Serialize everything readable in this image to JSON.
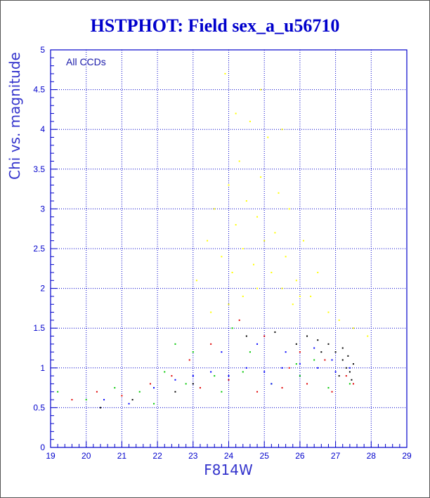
{
  "chart_data": {
    "type": "scatter",
    "title": "HSTPHOT: Field sex_a_u56710",
    "xlabel": "F814W",
    "ylabel": "Chi vs. magnitude",
    "annotation": "All CCDs",
    "xlim": [
      19,
      29
    ],
    "ylim": [
      0,
      5
    ],
    "x_ticks": [
      "19",
      "20",
      "21",
      "22",
      "23",
      "24",
      "25",
      "26",
      "27",
      "28",
      "29"
    ],
    "y_ticks": [
      "0",
      "0.5",
      "1",
      "1.5",
      "2",
      "2.5",
      "3",
      "3.5",
      "4",
      "4.5",
      "5"
    ],
    "grid": true,
    "colors": {
      "axes": "#0000cc",
      "grid": "#0000cc",
      "series_yellow": "#ffff00",
      "series_blue": "#0000ff",
      "series_green": "#00c800",
      "series_red": "#e00000",
      "series_black": "#000000"
    },
    "series": [
      {
        "color": "#ffff00",
        "values": [
          [
            23.1,
            2.1
          ],
          [
            23.4,
            2.6
          ],
          [
            23.6,
            3.0
          ],
          [
            23.8,
            2.4
          ],
          [
            24.0,
            3.3
          ],
          [
            24.1,
            2.2
          ],
          [
            24.2,
            2.8
          ],
          [
            24.3,
            3.6
          ],
          [
            24.4,
            2.5
          ],
          [
            24.5,
            3.1
          ],
          [
            24.6,
            4.1
          ],
          [
            24.7,
            2.3
          ],
          [
            24.8,
            2.9
          ],
          [
            24.9,
            3.4
          ],
          [
            25.0,
            2.6
          ],
          [
            25.1,
            3.9
          ],
          [
            25.2,
            2.2
          ],
          [
            25.3,
            2.7
          ],
          [
            25.4,
            3.2
          ],
          [
            25.5,
            2.0
          ],
          [
            25.6,
            2.4
          ],
          [
            25.7,
            3.0
          ],
          [
            25.9,
            2.1
          ],
          [
            26.1,
            2.6
          ],
          [
            26.3,
            1.9
          ],
          [
            26.5,
            2.2
          ],
          [
            26.8,
            1.7
          ],
          [
            27.1,
            1.6
          ],
          [
            27.5,
            1.5
          ],
          [
            27.9,
            1.4
          ],
          [
            24.2,
            4.2
          ],
          [
            24.9,
            4.5
          ],
          [
            23.9,
            4.7
          ],
          [
            25.5,
            4.0
          ],
          [
            24.4,
            1.9
          ],
          [
            25.8,
            1.8
          ],
          [
            23.5,
            1.7
          ],
          [
            24.8,
            2.0
          ],
          [
            26.0,
            1.9
          ],
          [
            24.0,
            1.8
          ]
        ]
      },
      {
        "color": "#000000",
        "values": [
          [
            26.8,
            1.3
          ],
          [
            27.0,
            1.2
          ],
          [
            27.2,
            1.1
          ],
          [
            27.3,
            1.0
          ],
          [
            27.4,
            0.95
          ],
          [
            27.5,
            1.05
          ],
          [
            26.5,
            1.35
          ],
          [
            26.2,
            1.4
          ],
          [
            27.1,
            0.9
          ],
          [
            27.35,
            1.15
          ],
          [
            21.3,
            0.6
          ],
          [
            20.4,
            0.5
          ],
          [
            22.5,
            0.7
          ],
          [
            23.0,
            0.8
          ],
          [
            25.9,
            1.3
          ],
          [
            26.6,
            1.2
          ],
          [
            27.45,
            0.85
          ],
          [
            24.5,
            1.4
          ],
          [
            25.3,
            1.45
          ],
          [
            27.2,
            1.25
          ]
        ]
      },
      {
        "color": "#e00000",
        "values": [
          [
            19.6,
            0.6
          ],
          [
            20.3,
            0.7
          ],
          [
            21.0,
            0.65
          ],
          [
            21.8,
            0.8
          ],
          [
            22.4,
            0.9
          ],
          [
            23.2,
            0.75
          ],
          [
            24.0,
            0.85
          ],
          [
            24.8,
            0.7
          ],
          [
            25.5,
            0.75
          ],
          [
            26.2,
            0.8
          ],
          [
            26.9,
            0.7
          ],
          [
            27.5,
            0.8
          ],
          [
            23.5,
            1.3
          ],
          [
            25.0,
            1.4
          ],
          [
            26.0,
            1.2
          ],
          [
            24.3,
            1.6
          ],
          [
            22.9,
            1.1
          ],
          [
            25.7,
            1.0
          ],
          [
            26.7,
            1.1
          ],
          [
            27.3,
            0.9
          ]
        ]
      },
      {
        "color": "#00c800",
        "values": [
          [
            19.2,
            0.7
          ],
          [
            20.0,
            0.6
          ],
          [
            20.8,
            0.75
          ],
          [
            21.5,
            0.7
          ],
          [
            22.2,
            0.95
          ],
          [
            22.8,
            0.8
          ],
          [
            23.6,
            0.9
          ],
          [
            24.4,
            0.95
          ],
          [
            25.2,
            0.8
          ],
          [
            26.0,
            0.9
          ],
          [
            26.8,
            0.75
          ],
          [
            27.4,
            0.8
          ],
          [
            23.0,
            1.2
          ],
          [
            24.6,
            1.2
          ],
          [
            25.9,
            1.05
          ],
          [
            22.5,
            1.3
          ],
          [
            24.1,
            1.5
          ],
          [
            26.4,
            1.1
          ],
          [
            21.9,
            0.55
          ],
          [
            23.8,
            0.7
          ]
        ]
      },
      {
        "color": "#0000ff",
        "values": [
          [
            20.5,
            0.6
          ],
          [
            21.2,
            0.55
          ],
          [
            21.9,
            0.75
          ],
          [
            22.5,
            0.85
          ],
          [
            23.0,
            0.9
          ],
          [
            23.5,
            0.95
          ],
          [
            24.0,
            0.9
          ],
          [
            24.5,
            1.0
          ],
          [
            25.0,
            0.95
          ],
          [
            25.5,
            1.0
          ],
          [
            26.0,
            1.05
          ],
          [
            26.5,
            1.0
          ],
          [
            27.0,
            0.95
          ],
          [
            27.4,
            1.0
          ],
          [
            24.8,
            1.3
          ],
          [
            25.6,
            1.2
          ],
          [
            26.4,
            1.25
          ],
          [
            23.8,
            1.2
          ],
          [
            25.2,
            0.8
          ],
          [
            26.9,
            1.1
          ]
        ]
      }
    ]
  }
}
